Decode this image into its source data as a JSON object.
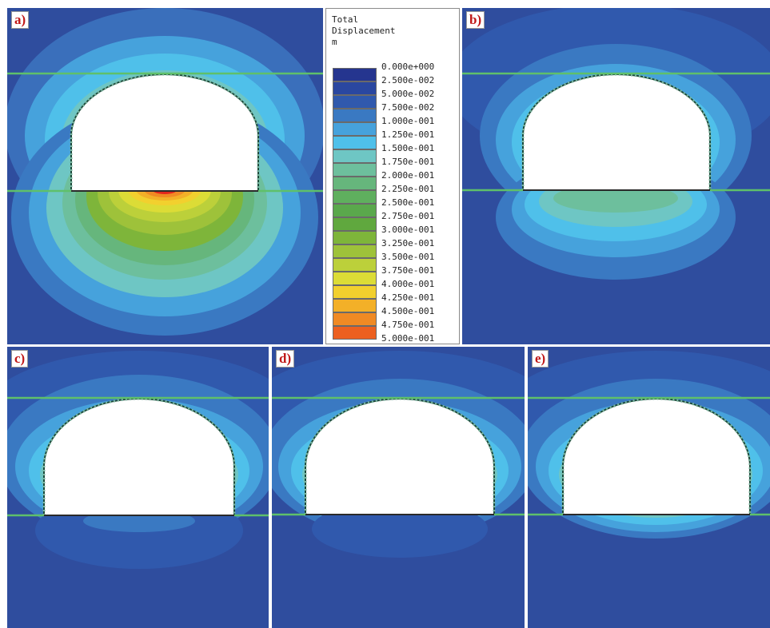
{
  "panels": [
    {
      "label": "a)"
    },
    {
      "label": "b)"
    },
    {
      "label": "c)"
    },
    {
      "label": "d)"
    },
    {
      "label": "e)"
    }
  ],
  "legend": {
    "title_lines": [
      "Total",
      "Displacement",
      "m"
    ],
    "levels": [
      {
        "value": "0.000e+000",
        "color": "#25358f"
      },
      {
        "value": "2.500e-002",
        "color": "#2a47a0"
      },
      {
        "value": "5.000e-002",
        "color": "#3059ad"
      },
      {
        "value": "7.500e-002",
        "color": "#3a79c2"
      },
      {
        "value": "1.000e-001",
        "color": "#46a2dc"
      },
      {
        "value": "1.250e-001",
        "color": "#4fc0ea"
      },
      {
        "value": "1.500e-001",
        "color": "#6ec6c4"
      },
      {
        "value": "1.750e-001",
        "color": "#6dbf9d"
      },
      {
        "value": "2.000e-001",
        "color": "#66b67c"
      },
      {
        "value": "2.250e-001",
        "color": "#5faf5e"
      },
      {
        "value": "2.500e-001",
        "color": "#5aa84c"
      },
      {
        "value": "2.750e-001",
        "color": "#60a83e"
      },
      {
        "value": "3.000e-001",
        "color": "#7eb53a"
      },
      {
        "value": "3.250e-001",
        "color": "#9ec23a"
      },
      {
        "value": "3.500e-001",
        "color": "#bcd03a"
      },
      {
        "value": "3.750e-001",
        "color": "#dcdc36"
      },
      {
        "value": "4.000e-001",
        "color": "#f2d02e"
      },
      {
        "value": "4.250e-001",
        "color": "#f3b028"
      },
      {
        "value": "4.500e-001",
        "color": "#f08a24"
      },
      {
        "value": "4.750e-001",
        "color": "#ec6020"
      },
      {
        "value": "5.000e-001",
        "color": "#e4261d"
      }
    ]
  }
}
